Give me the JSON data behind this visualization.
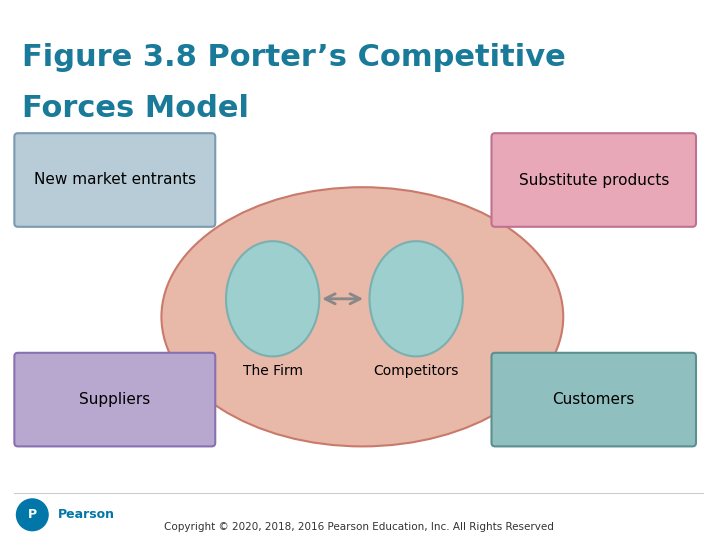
{
  "title_line1": "Figure 3.8 Porter’s Competitive",
  "title_line2": "Forces Model",
  "title_color": "#1a7a9a",
  "title_fontsize": 22,
  "bg_color": "#ffffff",
  "ellipse_color": "#e8b8a8",
  "ellipse_edge": "#c97a6a",
  "circle_color": "#9ecfcf",
  "circle_edge": "#7ab0b0",
  "box_top_left_color": "#b8ccd8",
  "box_top_left_edge": "#7a9ab0",
  "box_top_right_color": "#e8a8b8",
  "box_top_right_edge": "#c07090",
  "box_bot_left_color": "#b8a8d0",
  "box_bot_left_edge": "#8870b0",
  "box_bot_right_color": "#8fbfbf",
  "box_bot_right_edge": "#5a9090",
  "label_firm": "The Firm",
  "label_competitors": "Competitors",
  "label_new_market": "New market entrants",
  "label_substitute": "Substitute products",
  "label_suppliers": "Suppliers",
  "label_customers": "Customers",
  "copyright_text": "Copyright © 2020, 2018, 2016 Pearson Education, Inc. All Rights Reserved",
  "arrow_color": "#888888",
  "font_size_labels": 11,
  "font_size_box": 11
}
